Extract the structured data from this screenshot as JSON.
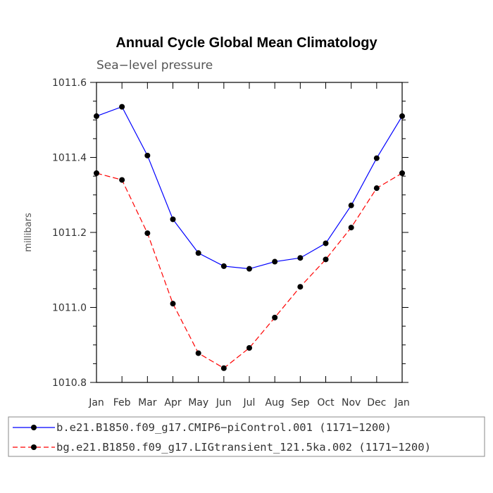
{
  "chart_data": {
    "type": "line",
    "title": "Annual Cycle Global Mean Climatology",
    "subtitle": "Sea−level pressure",
    "xlabel": "",
    "ylabel": "millibars",
    "categories": [
      "Jan",
      "Feb",
      "Mar",
      "Apr",
      "May",
      "Jun",
      "Jul",
      "Aug",
      "Sep",
      "Oct",
      "Nov",
      "Dec",
      "Jan"
    ],
    "ylim": [
      1010.8,
      1011.6
    ],
    "yticks": [
      "1010.8",
      "1011.0",
      "1011.2",
      "1011.4",
      "1011.6"
    ],
    "series": [
      {
        "name": "b.e21.B1850.f09_g17.CMIP6−piControl.001 (1171−1200)",
        "color": "#0000ff",
        "dash": "solid",
        "values": [
          1011.51,
          1011.535,
          1011.405,
          1011.235,
          1011.145,
          1011.11,
          1011.103,
          1011.122,
          1011.132,
          1011.171,
          1011.272,
          1011.398,
          1011.51
        ]
      },
      {
        "name": "bg.e21.B1850.f09_g17.LIGtransient_121.5ka.002 (1171−1200)",
        "color": "#ff0000",
        "dash": "dashed",
        "values": [
          1011.358,
          1011.34,
          1011.198,
          1011.01,
          1010.878,
          1010.838,
          1010.892,
          1010.973,
          1011.055,
          1011.128,
          1011.213,
          1011.318,
          1011.358
        ]
      }
    ]
  }
}
